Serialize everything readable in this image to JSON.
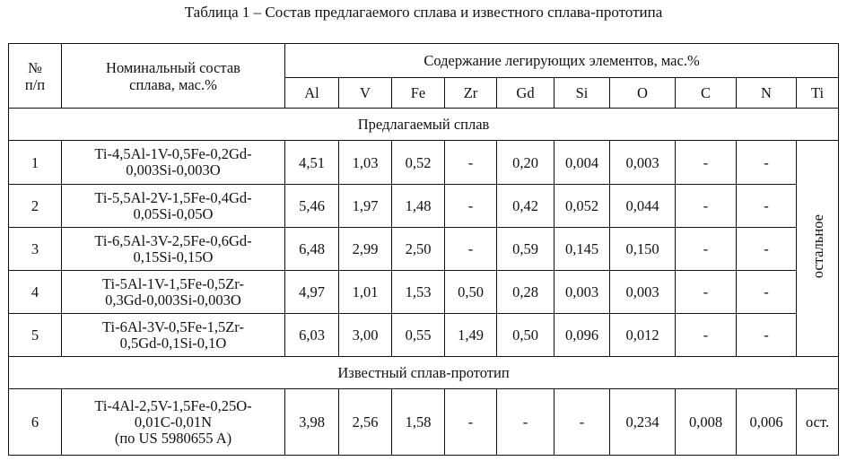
{
  "caption": "Таблица 1 – Состав предлагаемого сплава и известного сплава-прототипа",
  "header": {
    "num_line1": "№",
    "num_line2": "п/п",
    "nominal_line1": "Номинальный состав",
    "nominal_line2": "сплава, мас.%",
    "content": "Содержание легирующих элементов, мас.%",
    "elements": [
      "Al",
      "V",
      "Fe",
      "Zr",
      "Gd",
      "Si",
      "O",
      "C",
      "N",
      "Ti"
    ]
  },
  "sections": {
    "proposed": "Предлагаемый сплав",
    "known": "Известный сплав-прототип"
  },
  "ti_balance": "остальное",
  "rows": [
    {
      "num": "1",
      "alloy": [
        "Ti-4,5Al-1V-0,5Fe-0,2Gd-",
        "0,003Si-0,003O"
      ],
      "values": [
        "4,51",
        "1,03",
        "0,52",
        "-",
        "0,20",
        "0,004",
        "0,003",
        "-",
        "-"
      ]
    },
    {
      "num": "2",
      "alloy": [
        "Ti-5,5Al-2V-1,5Fe-0,4Gd-",
        "0,05Si-0,05O"
      ],
      "values": [
        "5,46",
        "1,97",
        "1,48",
        "-",
        "0,42",
        "0,052",
        "0,044",
        "-",
        "-"
      ]
    },
    {
      "num": "3",
      "alloy": [
        "Ti-6,5Al-3V-2,5Fe-0,6Gd-",
        "0,15Si-0,15O"
      ],
      "values": [
        "6,48",
        "2,99",
        "2,50",
        "-",
        "0,59",
        "0,145",
        "0,150",
        "-",
        "-"
      ]
    },
    {
      "num": "4",
      "alloy": [
        "Ti-5Al-1V-1,5Fe-0,5Zr-",
        "0,3Gd-0,003Si-0,003O"
      ],
      "values": [
        "4,97",
        "1,01",
        "1,53",
        "0,50",
        "0,28",
        "0,003",
        "0,003",
        "-",
        "-"
      ]
    },
    {
      "num": "5",
      "alloy": [
        "Ti-6Al-3V-0,5Fe-1,5Zr-",
        "0,5Gd-0,1Si-0,1O"
      ],
      "values": [
        "6,03",
        "3,00",
        "0,55",
        "1,49",
        "0,50",
        "0,096",
        "0,012",
        "-",
        "-"
      ]
    }
  ],
  "prototype": {
    "num": "6",
    "alloy": [
      "Ti-4Al-2,5V-1,5Fe-0,25O-",
      "0,01C-0,01N",
      "(по US 5980655 A)"
    ],
    "values": [
      "3,98",
      "2,56",
      "1,58",
      "-",
      "-",
      "-",
      "0,234",
      "0,008",
      "0,006",
      "ост."
    ]
  }
}
